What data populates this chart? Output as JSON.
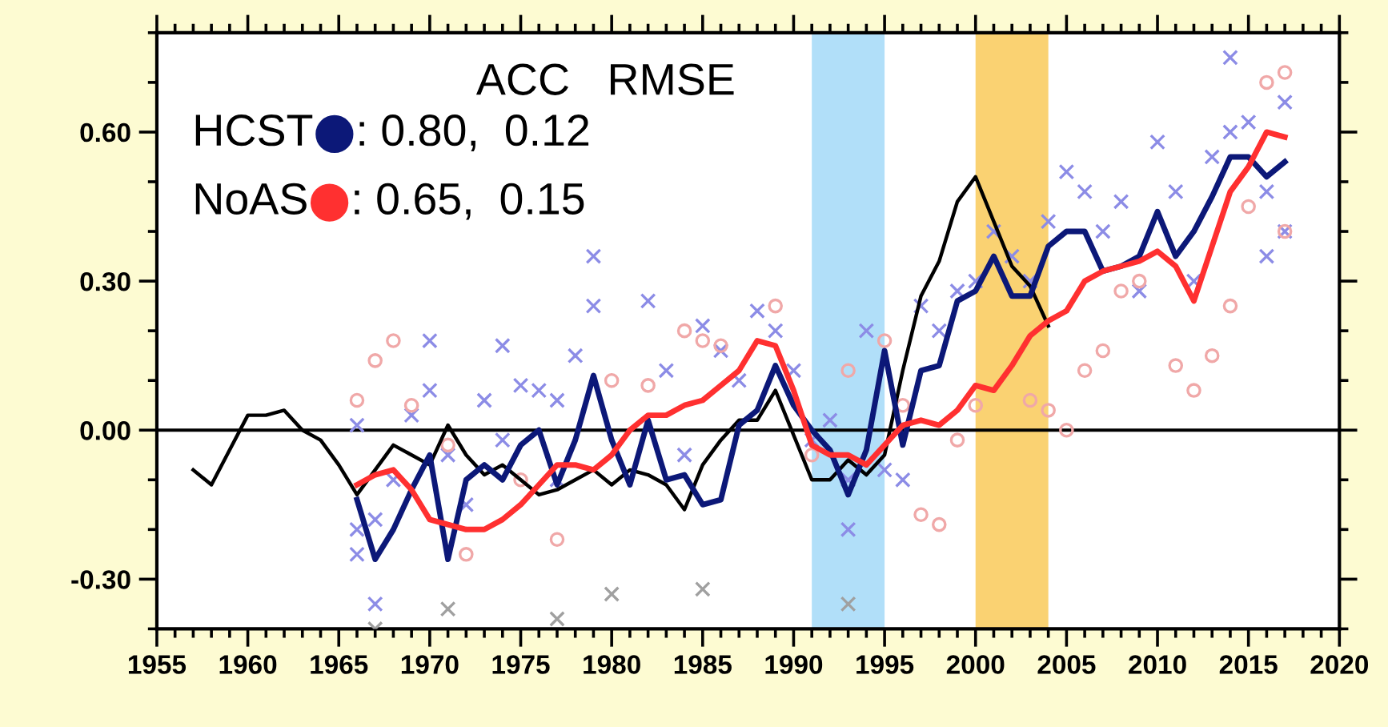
{
  "chart_data": {
    "type": "line",
    "annotations": [
      "ACC   RMSE",
      ": 0.80,  0.12",
      ": 0.65,  0.15"
    ],
    "xlim": [
      1955,
      2020
    ],
    "xticks": [
      1955,
      1960,
      1965,
      1970,
      1975,
      1980,
      1985,
      1990,
      1995,
      2000,
      2005,
      2010,
      2015,
      2020
    ],
    "ylim": [
      -0.4,
      0.8
    ],
    "yticks": [
      {
        "value": -0.3,
        "label": "-0.30"
      },
      {
        "value": 0,
        "label": "0.00"
      },
      {
        "value": 0.3,
        "label": "0.30"
      },
      {
        "value": 0.6,
        "label": "0.60"
      }
    ],
    "grid": false,
    "legend": "top left",
    "marker": "none",
    "line_style": "solid",
    "bands": [
      {
        "axis": "x",
        "from": 1991,
        "to": 1995,
        "color": "#a8dcf8"
      },
      {
        "axis": "x",
        "from": 2000,
        "to": 2004,
        "color": "#f9cd63"
      }
    ],
    "ref_lines": [
      {
        "axis": "y",
        "value": 0,
        "color": "#000000"
      }
    ],
    "series": [
      {
        "type": "scatter",
        "marker": "cross",
        "color": "#8c8ce6",
        "x": [
          1966,
          1966,
          1966,
          1967,
          1967,
          1968,
          1969,
          1970,
          1970,
          1971,
          1972,
          1973,
          1974,
          1974,
          1975,
          1976,
          1977,
          1977,
          1978,
          1979,
          1979,
          1982,
          1983,
          1984,
          1985,
          1986,
          1987,
          1988,
          1989,
          1990,
          1991,
          1992,
          1993,
          1993,
          1994,
          1995,
          1996,
          1997,
          1998,
          1999,
          2000,
          2001,
          2002,
          2003,
          2004,
          2005,
          2006,
          2007,
          2008,
          2009,
          2010,
          2011,
          2012,
          2013,
          2014,
          2015,
          2016,
          2017,
          2017,
          2014,
          2016
        ],
        "values": [
          0.01,
          -0.2,
          -0.25,
          -0.18,
          -0.35,
          -0.1,
          0.03,
          0.18,
          0.08,
          -0.05,
          -0.15,
          0.06,
          0.17,
          -0.02,
          0.09,
          0.08,
          -0.1,
          0.06,
          0.15,
          0.25,
          0.35,
          0.26,
          0.12,
          -0.05,
          0.21,
          0.16,
          0.1,
          0.24,
          0.2,
          0.12,
          -0.02,
          0.02,
          -0.1,
          -0.2,
          0.2,
          -0.08,
          -0.1,
          0.25,
          0.2,
          0.28,
          0.3,
          0.4,
          0.35,
          0.3,
          0.42,
          0.52,
          0.48,
          0.4,
          0.46,
          0.28,
          0.58,
          0.48,
          0.3,
          0.55,
          0.6,
          0.62,
          0.48,
          0.66,
          0.4,
          0.75,
          0.35
        ]
      },
      {
        "type": "scatter",
        "marker": "cross",
        "color": "#a0a0a0",
        "x": [
          1967,
          1971,
          1977,
          1980,
          1985,
          1993
        ],
        "values": [
          -0.4,
          -0.36,
          -0.38,
          -0.33,
          -0.32,
          -0.35
        ]
      },
      {
        "type": "scatter",
        "marker": "circle",
        "color": "#f0a8a8",
        "x": [
          1966,
          1967,
          1968,
          1969,
          1971,
          1972,
          1975,
          1977,
          1980,
          1982,
          1984,
          1985,
          1986,
          1987,
          1989,
          1990,
          1991,
          1993,
          1995,
          1996,
          1997,
          1998,
          1999,
          2000,
          2003,
          2004,
          2005,
          2006,
          2007,
          2008,
          2009,
          2011,
          2012,
          2013,
          2014,
          2015,
          2016,
          2017,
          2017
        ],
        "values": [
          0.06,
          0.14,
          0.18,
          0.05,
          -0.03,
          -0.25,
          -0.1,
          -0.22,
          0.1,
          0.09,
          0.2,
          0.18,
          0.17,
          null,
          0.25,
          null,
          -0.05,
          0.12,
          0.18,
          0.05,
          -0.17,
          -0.19,
          -0.02,
          0.05,
          0.06,
          0.04,
          0.0,
          0.12,
          0.16,
          0.28,
          0.3,
          0.13,
          0.08,
          0.15,
          0.25,
          0.45,
          0.7,
          0.72,
          0.4
        ]
      },
      {
        "color": "#000000",
        "x": [
          1957,
          1958,
          1959,
          1960,
          1961,
          1962,
          1963,
          1964,
          1965,
          1966,
          1967,
          1968,
          1969,
          1970,
          1971,
          1972,
          1973,
          1974,
          1975,
          1976,
          1977,
          1978,
          1979,
          1980,
          1981,
          1982,
          1983,
          1984,
          1985,
          1986,
          1987,
          1988,
          1989,
          1990,
          1991,
          1992,
          1993,
          1994,
          1995,
          1996,
          1997,
          1998,
          1999,
          2000,
          2001,
          2002,
          2003,
          2004
        ],
        "values": [
          -0.08,
          -0.11,
          -0.04,
          0.03,
          0.03,
          0.04,
          0.0,
          -0.02,
          -0.07,
          -0.13,
          -0.08,
          -0.03,
          -0.05,
          -0.07,
          0.01,
          -0.05,
          -0.09,
          -0.07,
          -0.1,
          -0.13,
          -0.12,
          -0.1,
          -0.08,
          -0.11,
          -0.08,
          -0.09,
          -0.11,
          -0.16,
          -0.07,
          -0.02,
          0.02,
          0.02,
          0.08,
          -0.01,
          -0.1,
          -0.1,
          -0.06,
          -0.09,
          -0.05,
          0.12,
          0.27,
          0.34,
          0.46,
          0.51,
          0.42,
          0.33,
          0.29,
          0.21
        ]
      },
      {
        "name": "HCST",
        "color": "#0c1878",
        "x": [
          1966,
          1967,
          1968,
          1969,
          1970,
          1971,
          1972,
          1973,
          1974,
          1975,
          1976,
          1977,
          1978,
          1979,
          1980,
          1981,
          1982,
          1983,
          1984,
          1985,
          1986,
          1987,
          1988,
          1989,
          1990,
          1991,
          1992,
          1993,
          1994,
          1995,
          1996,
          1997,
          1998,
          1999,
          2000,
          2001,
          2002,
          2003,
          2004,
          2005,
          2006,
          2007,
          2008,
          2009,
          2010,
          2011,
          2012,
          2013,
          2014,
          2015,
          2016,
          2017
        ],
        "values": [
          -0.14,
          -0.26,
          -0.2,
          -0.12,
          -0.05,
          -0.26,
          -0.1,
          -0.07,
          -0.1,
          -0.03,
          0.0,
          -0.11,
          -0.02,
          0.11,
          -0.02,
          -0.11,
          0.02,
          -0.1,
          -0.09,
          -0.15,
          -0.14,
          0.01,
          0.04,
          0.13,
          0.05,
          0.0,
          -0.04,
          -0.13,
          -0.04,
          0.16,
          -0.03,
          0.12,
          0.13,
          0.26,
          0.28,
          0.35,
          0.27,
          0.27,
          0.37,
          0.4,
          0.4,
          0.32,
          0.33,
          0.35,
          0.44,
          0.35,
          0.4,
          0.47,
          0.55,
          0.55,
          0.51,
          0.54
        ]
      },
      {
        "name": "NoAS",
        "color": "#ff3030",
        "x": [
          1966,
          1967,
          1968,
          1969,
          1970,
          1971,
          1972,
          1973,
          1974,
          1975,
          1976,
          1977,
          1978,
          1979,
          1980,
          1981,
          1982,
          1983,
          1984,
          1985,
          1986,
          1987,
          1988,
          1989,
          1990,
          1991,
          1992,
          1993,
          1994,
          1995,
          1996,
          1997,
          1998,
          1999,
          2000,
          2001,
          2002,
          2003,
          2004,
          2005,
          2006,
          2007,
          2008,
          2009,
          2010,
          2011,
          2012,
          2013,
          2014,
          2015,
          2016,
          2017
        ],
        "values": [
          -0.11,
          -0.09,
          -0.08,
          -0.12,
          -0.18,
          -0.19,
          -0.2,
          -0.2,
          -0.18,
          -0.15,
          -0.11,
          -0.07,
          -0.07,
          -0.08,
          -0.05,
          0.0,
          0.03,
          0.03,
          0.05,
          0.06,
          0.09,
          0.12,
          0.18,
          0.17,
          0.08,
          -0.03,
          -0.05,
          -0.05,
          -0.07,
          -0.03,
          0.01,
          0.02,
          0.01,
          0.04,
          0.09,
          0.08,
          0.13,
          0.19,
          0.22,
          0.24,
          0.3,
          0.32,
          0.33,
          0.34,
          0.36,
          0.33,
          0.26,
          0.37,
          0.48,
          0.53,
          0.6,
          0.59
        ]
      }
    ]
  }
}
